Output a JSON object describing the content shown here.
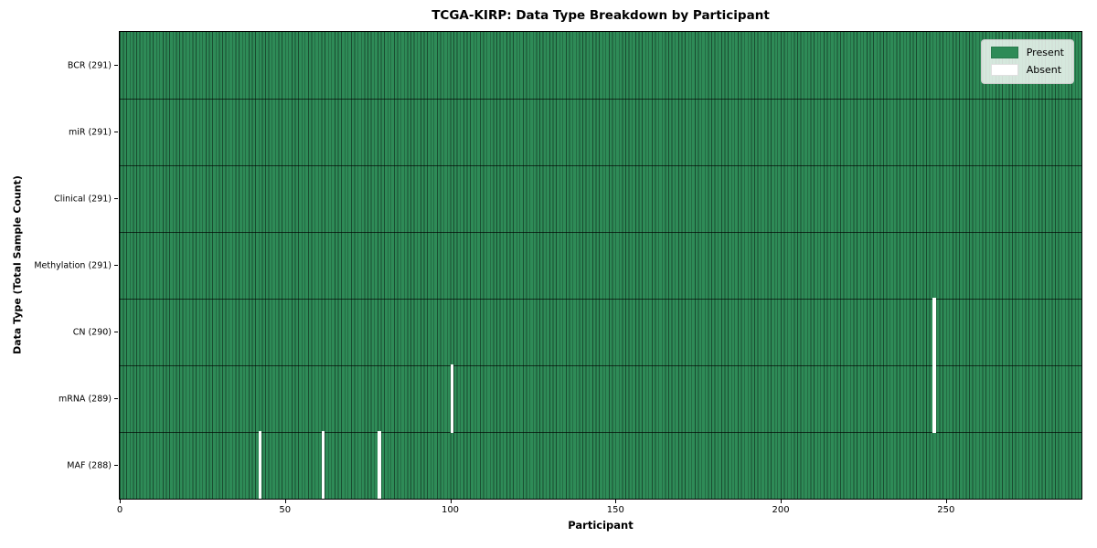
{
  "chart_data": {
    "type": "heatmap",
    "title": "TCGA-KIRP: Data Type Breakdown by Participant",
    "xlabel": "Participant",
    "ylabel": "Data Type (Total Sample Count)",
    "n_participants": 291,
    "xlim": [
      0,
      291
    ],
    "x_ticks": [
      0,
      50,
      100,
      150,
      200,
      250
    ],
    "grid": false,
    "rows": [
      {
        "data_type": "BCR",
        "label": "BCR (291)",
        "present_count": 291,
        "absent_participants": []
      },
      {
        "data_type": "miR",
        "label": "miR (291)",
        "present_count": 291,
        "absent_participants": []
      },
      {
        "data_type": "Clinical",
        "label": "Clinical (291)",
        "present_count": 291,
        "absent_participants": []
      },
      {
        "data_type": "Methylation",
        "label": "Methylation (291)",
        "present_count": 291,
        "absent_participants": []
      },
      {
        "data_type": "CN",
        "label": "CN (290)",
        "present_count": 290,
        "absent_participants": [
          246
        ]
      },
      {
        "data_type": "mRNA",
        "label": "mRNA (289)",
        "present_count": 289,
        "absent_participants": [
          100,
          246
        ]
      },
      {
        "data_type": "MAF",
        "label": "MAF (288)",
        "present_count": 288,
        "absent_participants": [
          42,
          61,
          78
        ]
      }
    ],
    "legend": {
      "position": "upper right",
      "entries": [
        {
          "label": "Present",
          "color": "#2e8b57"
        },
        {
          "label": "Absent",
          "color": "#ffffff"
        }
      ]
    },
    "colors": {
      "present": "#2e8b57",
      "absent": "#ffffff",
      "cell_edge": "#00000073",
      "row_separator": "#000000a6",
      "frame": "#000000"
    }
  }
}
